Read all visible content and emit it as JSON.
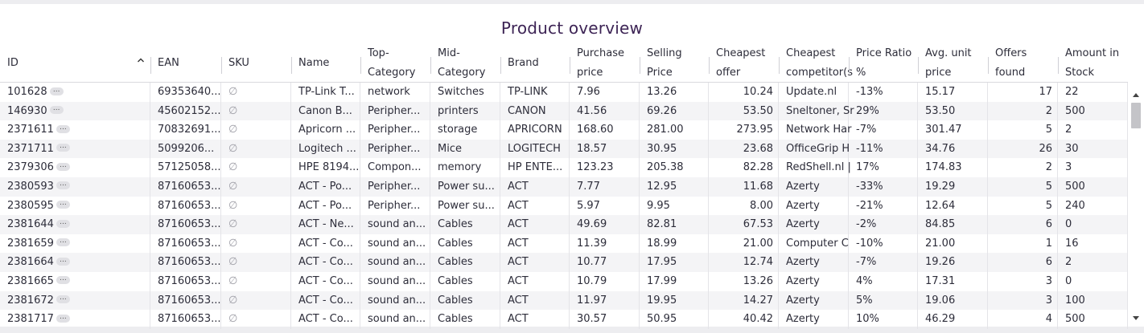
{
  "title": "Product overview",
  "columns": [
    {
      "key": "id",
      "label": "ID"
    },
    {
      "key": "ean",
      "label": "EAN"
    },
    {
      "key": "sku",
      "label": "SKU"
    },
    {
      "key": "name",
      "label": "Name"
    },
    {
      "key": "top",
      "label": "Top-\nCategory"
    },
    {
      "key": "mid",
      "label": "Mid-\nCategory"
    },
    {
      "key": "brand",
      "label": "Brand"
    },
    {
      "key": "purchase",
      "label": "Purchase\nprice"
    },
    {
      "key": "selling",
      "label": "Selling\nPrice"
    },
    {
      "key": "cheapest_offer",
      "label": "Cheapest\noffer"
    },
    {
      "key": "cheapest_comp",
      "label": "Cheapest\ncompetitor(s"
    },
    {
      "key": "ratio",
      "label": "Price Ratio\n%"
    },
    {
      "key": "avg",
      "label": "Avg. unit\nprice"
    },
    {
      "key": "offers",
      "label": "Offers\nfound"
    },
    {
      "key": "stock",
      "label": "Amount in\nStock"
    }
  ],
  "sort": {
    "column": "id",
    "direction": "asc",
    "icon": "chevron-up-icon"
  },
  "more_badge": "...",
  "null_symbol": "∅",
  "rows": [
    {
      "id": "101628",
      "ean": "69353640...",
      "sku": "∅",
      "name": "TP-Link T...",
      "top": "network",
      "mid": "Switches",
      "brand": "TP-LINK",
      "purchase": "7.96",
      "selling": "13.26",
      "cheapest_offer": "10.24",
      "cheapest_comp": "Update.nl",
      "ratio": "-13%",
      "avg": "15.17",
      "offers": "17",
      "stock": "22"
    },
    {
      "id": "146930",
      "ean": "45602152...",
      "sku": "∅",
      "name": "Canon B...",
      "top": "Peripher...",
      "mid": "printers",
      "brand": "CANON",
      "purchase": "41.56",
      "selling": "69.26",
      "cheapest_offer": "53.50",
      "cheapest_comp": "Sneltoner, Sr",
      "ratio": "29%",
      "avg": "53.50",
      "offers": "2",
      "stock": "500"
    },
    {
      "id": "2371611",
      "ean": "70832691...",
      "sku": "∅",
      "name": "Apricorn ...",
      "top": "Peripher...",
      "mid": "storage",
      "brand": "APRICORN",
      "purchase": "168.60",
      "selling": "281.00",
      "cheapest_offer": "273.95",
      "cheapest_comp": "Network Har",
      "ratio": "-7%",
      "avg": "301.47",
      "offers": "5",
      "stock": "2"
    },
    {
      "id": "2371711",
      "ean": "5099206...",
      "sku": "∅",
      "name": "Logitech ...",
      "top": "Peripher...",
      "mid": "Mice",
      "brand": "LOGITECH",
      "purchase": "18.57",
      "selling": "30.95",
      "cheapest_offer": "23.68",
      "cheapest_comp": "OfficeGrip H",
      "ratio": "-11%",
      "avg": "34.76",
      "offers": "26",
      "stock": "30"
    },
    {
      "id": "2379306",
      "ean": "57125058...",
      "sku": "∅",
      "name": "HPE 8194...",
      "top": "Compon...",
      "mid": "memory",
      "brand": "HP ENTE...",
      "purchase": "123.23",
      "selling": "205.38",
      "cheapest_offer": "82.28",
      "cheapest_comp": "RedShell.nl |",
      "ratio": "17%",
      "avg": "174.83",
      "offers": "2",
      "stock": "3"
    },
    {
      "id": "2380593",
      "ean": "87160653...",
      "sku": "∅",
      "name": "ACT - Po...",
      "top": "Peripher...",
      "mid": "Power su...",
      "brand": "ACT",
      "purchase": "7.77",
      "selling": "12.95",
      "cheapest_offer": "11.68",
      "cheapest_comp": "Azerty",
      "ratio": "-33%",
      "avg": "19.29",
      "offers": "5",
      "stock": "500"
    },
    {
      "id": "2380595",
      "ean": "87160653...",
      "sku": "∅",
      "name": "ACT - Po...",
      "top": "Peripher...",
      "mid": "Power su...",
      "brand": "ACT",
      "purchase": "5.97",
      "selling": "9.95",
      "cheapest_offer": "8.00",
      "cheapest_comp": "Azerty",
      "ratio": "-21%",
      "avg": "12.64",
      "offers": "5",
      "stock": "240"
    },
    {
      "id": "2381644",
      "ean": "87160653...",
      "sku": "∅",
      "name": "ACT - Ne...",
      "top": "sound an...",
      "mid": "Cables",
      "brand": "ACT",
      "purchase": "49.69",
      "selling": "82.81",
      "cheapest_offer": "67.53",
      "cheapest_comp": "Azerty",
      "ratio": "-2%",
      "avg": "84.85",
      "offers": "6",
      "stock": "0"
    },
    {
      "id": "2381659",
      "ean": "87160653...",
      "sku": "∅",
      "name": "ACT - Co...",
      "top": "sound an...",
      "mid": "Cables",
      "brand": "ACT",
      "purchase": "11.39",
      "selling": "18.99",
      "cheapest_offer": "21.00",
      "cheapest_comp": "Computer C",
      "ratio": "-10%",
      "avg": "21.00",
      "offers": "1",
      "stock": "16"
    },
    {
      "id": "2381664",
      "ean": "87160653...",
      "sku": "∅",
      "name": "ACT - Co...",
      "top": "sound an...",
      "mid": "Cables",
      "brand": "ACT",
      "purchase": "10.77",
      "selling": "17.95",
      "cheapest_offer": "12.74",
      "cheapest_comp": "Azerty",
      "ratio": "-7%",
      "avg": "19.26",
      "offers": "6",
      "stock": "2"
    },
    {
      "id": "2381665",
      "ean": "87160653...",
      "sku": "∅",
      "name": "ACT - Co...",
      "top": "sound an...",
      "mid": "Cables",
      "brand": "ACT",
      "purchase": "10.79",
      "selling": "17.99",
      "cheapest_offer": "13.26",
      "cheapest_comp": "Azerty",
      "ratio": "4%",
      "avg": "17.31",
      "offers": "3",
      "stock": "0"
    },
    {
      "id": "2381672",
      "ean": "87160653...",
      "sku": "∅",
      "name": "ACT - Co...",
      "top": "sound an...",
      "mid": "Cables",
      "brand": "ACT",
      "purchase": "11.97",
      "selling": "19.95",
      "cheapest_offer": "14.27",
      "cheapest_comp": "Azerty",
      "ratio": "5%",
      "avg": "19.06",
      "offers": "3",
      "stock": "100"
    },
    {
      "id": "2381717",
      "ean": "87160653...",
      "sku": "∅",
      "name": "ACT - Co...",
      "top": "sound an...",
      "mid": "Cables",
      "brand": "ACT",
      "purchase": "30.57",
      "selling": "50.95",
      "cheapest_offer": "40.42",
      "cheapest_comp": "Azerty",
      "ratio": "10%",
      "avg": "46.29",
      "offers": "4",
      "stock": "500"
    }
  ]
}
